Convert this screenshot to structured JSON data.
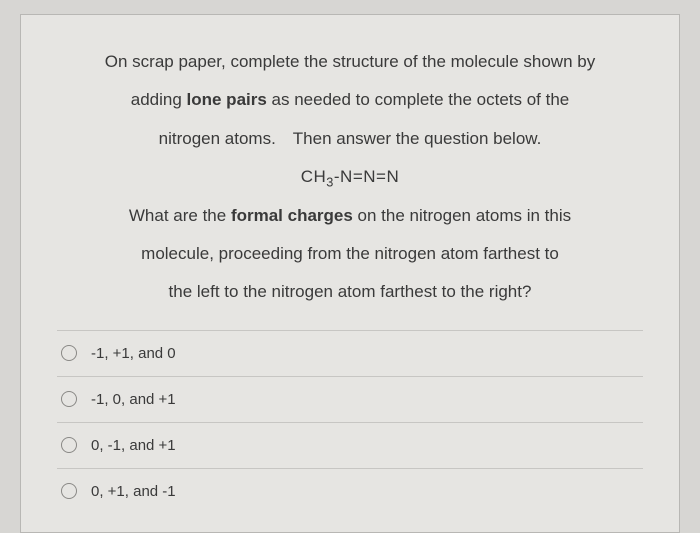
{
  "card": {
    "background_color": "#e6e5e2",
    "border_color": "#b8b7b4"
  },
  "prompt": {
    "line1a": "On scrap paper, complete the structure of the molecule shown by",
    "line2a": "adding ",
    "line2b": "lone pairs",
    "line2c": " as needed to complete the octets of the",
    "line3": "nitrogen atoms. Then answer the question below.",
    "formula_prefix": "CH",
    "formula_sub": "3",
    "formula_suffix": "-N=N=N",
    "line5a": "What are the ",
    "line5b": "formal charges",
    "line5c": " on the nitrogen atoms in this",
    "line6": "molecule, proceeding from the nitrogen atom farthest to",
    "line7": "the left to the nitrogen atom farthest to the right?",
    "text_color": "#3a3a3a",
    "font_size": 17
  },
  "options": [
    {
      "label": "-1, +1, and 0"
    },
    {
      "label": "-1, 0, and +1"
    },
    {
      "label": "0, -1, and +1"
    },
    {
      "label": "0, +1, and -1"
    }
  ],
  "option_style": {
    "border_color": "#c7c6c3",
    "radio_border": "#8a8986",
    "label_color": "#3a3a3a",
    "label_fontsize": 15
  }
}
